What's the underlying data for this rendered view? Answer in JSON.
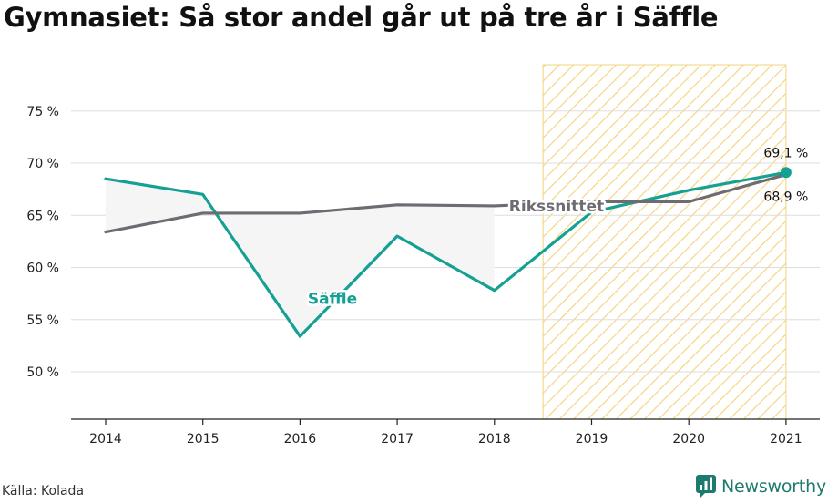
{
  "title": "Gymnasiet: Så stor andel går ut på tre år i Säffle",
  "source": "Källa: Kolada",
  "brand": {
    "name": "Newsworthy",
    "color": "#1d7a6e",
    "icon": "chart-bubble-icon"
  },
  "colors": {
    "saffle": "#14a194",
    "riks": "#6e6b73",
    "highlight": "#f3d37a",
    "fill": "#f5f5f6",
    "grid": "#dddddd"
  },
  "chart_data": {
    "type": "line",
    "title": "Gymnasiet: Så stor andel går ut på tre år i Säffle",
    "x": [
      "2014",
      "2015",
      "2016",
      "2017",
      "2018",
      "2019",
      "2020",
      "2021"
    ],
    "ylim": [
      45,
      80
    ],
    "yticks": [
      50,
      55,
      60,
      65,
      70,
      75
    ],
    "ytick_labels": [
      "50 %",
      "55 %",
      "60 %",
      "65 %",
      "70 %",
      "75 %"
    ],
    "grid": true,
    "highlight_range": [
      "2019",
      "2021"
    ],
    "series": [
      {
        "name": "Säffle",
        "key": "saffle",
        "values": [
          68.5,
          67.0,
          53.4,
          63.0,
          57.8,
          65.3,
          67.4,
          69.1
        ]
      },
      {
        "name": "Rikssnittet",
        "key": "riks",
        "values": [
          63.4,
          65.2,
          65.2,
          66.0,
          65.9,
          66.3,
          66.3,
          68.9
        ]
      }
    ],
    "annotations": [
      {
        "text": "69,1 %",
        "series": "Säffle",
        "x": "2021"
      },
      {
        "text": "68,9 %",
        "series": "Rikssnittet",
        "x": "2021"
      }
    ]
  }
}
